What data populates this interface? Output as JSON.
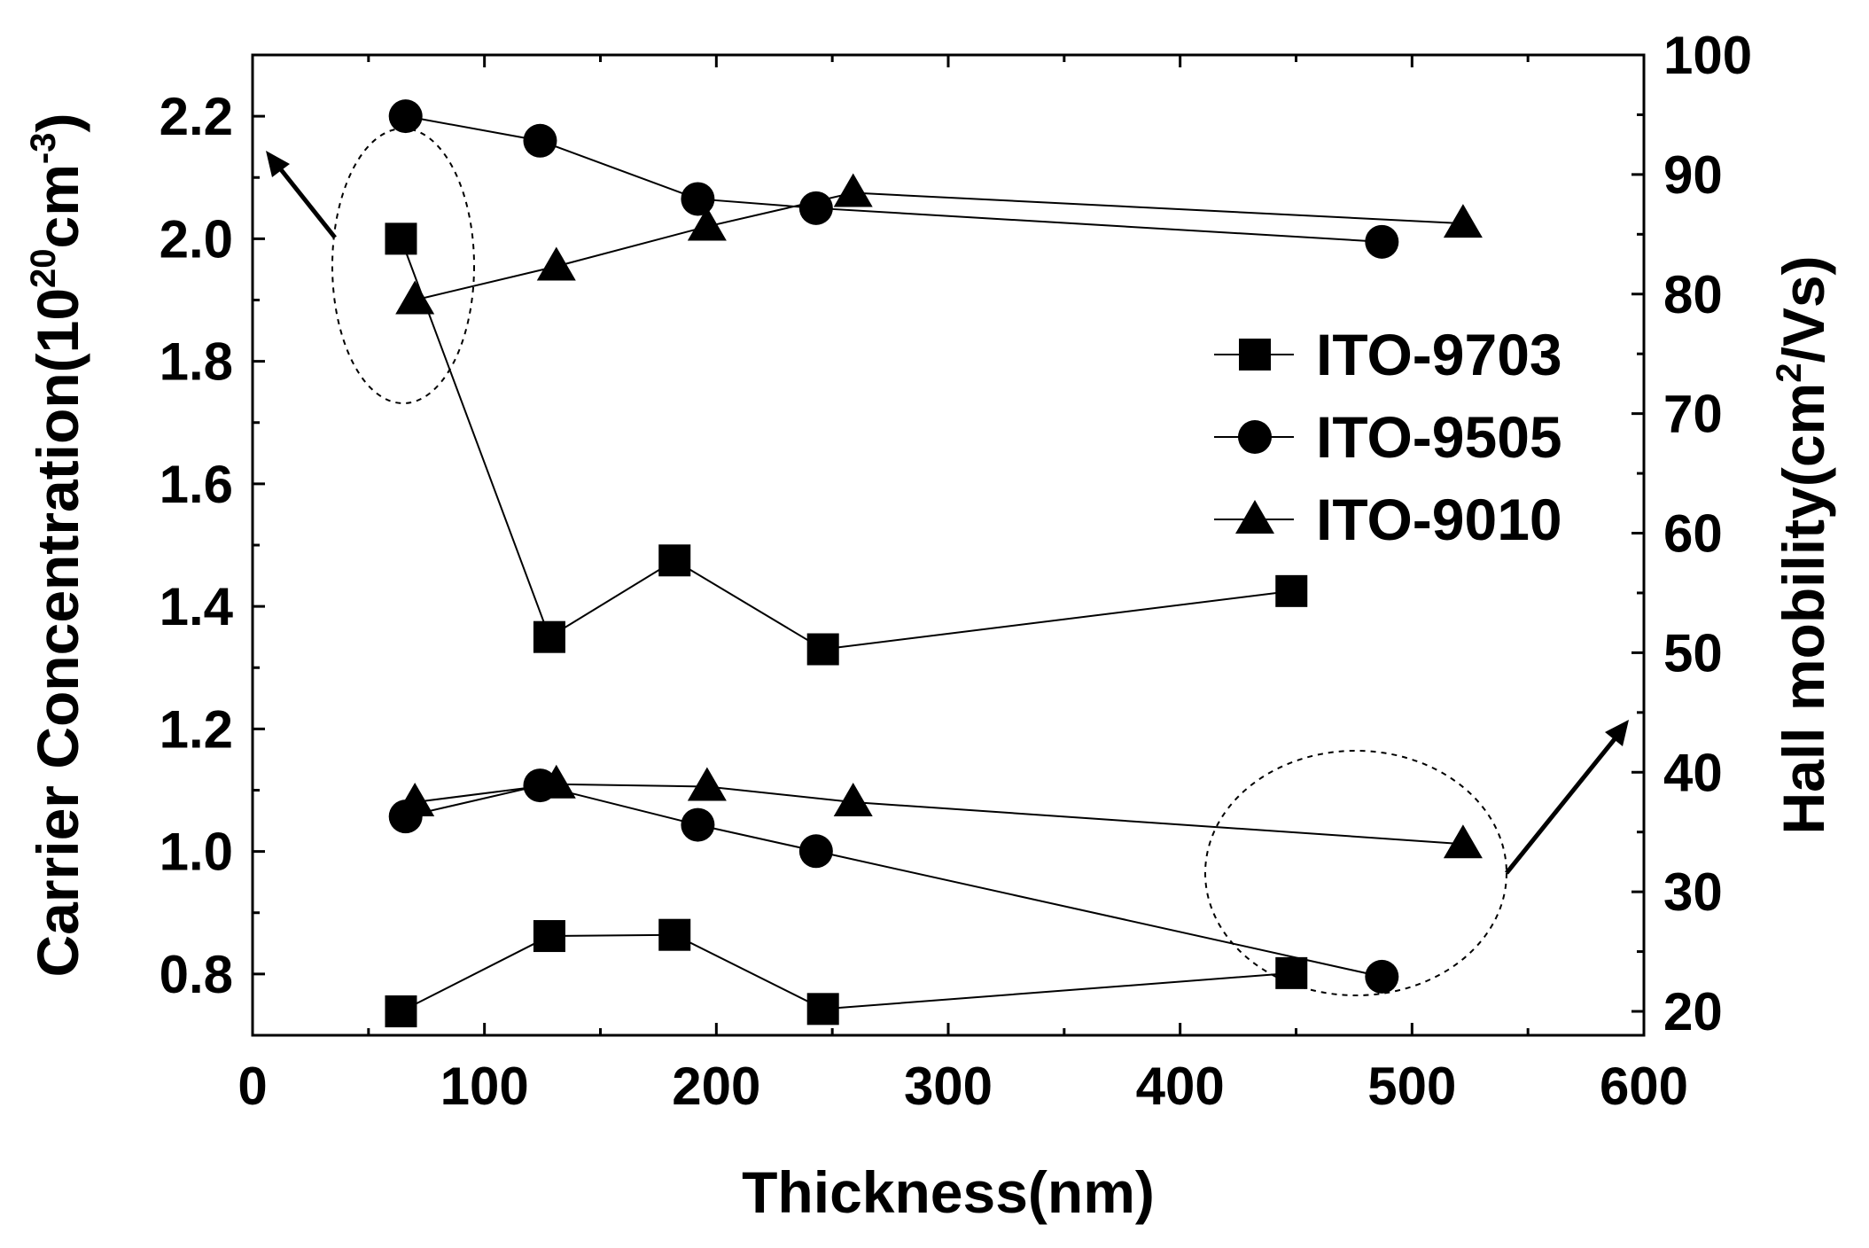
{
  "chart_data": {
    "type": "scatter",
    "x": {
      "label": "Thickness(nm)",
      "lim": [
        0,
        600
      ],
      "ticks": [
        0,
        100,
        200,
        300,
        400,
        500,
        600
      ]
    },
    "y_left": {
      "label_main": "Carrier Concentration(10",
      "label_sup1": "20",
      "label_mid": "cm",
      "label_sup2": "-3",
      "label_end": ")",
      "lim": [
        0.7,
        2.3
      ],
      "ticks": [
        "0.8",
        "1.0",
        "1.2",
        "1.4",
        "1.6",
        "1.8",
        "2.0",
        "2.2"
      ]
    },
    "y_right": {
      "label_main": "Hall mobility(cm",
      "label_sup": "2",
      "label_end": "/Vs)",
      "lim": [
        18,
        100
      ],
      "ticks": [
        "20",
        "30",
        "40",
        "50",
        "60",
        "70",
        "80",
        "90",
        "100"
      ]
    },
    "series": [
      {
        "name": "ITO-9703",
        "marker": "square",
        "axis": "left",
        "group": "concentration",
        "x": [
          64,
          128,
          182,
          246,
          448
        ],
        "y": [
          2.0,
          1.35,
          1.475,
          1.33,
          1.425
        ]
      },
      {
        "name": "ITO-9505",
        "marker": "circle",
        "axis": "left",
        "group": "concentration",
        "x": [
          66,
          124,
          192,
          243,
          487
        ],
        "y": [
          2.2,
          2.16,
          2.065,
          2.05,
          1.995
        ]
      },
      {
        "name": "ITO-9010",
        "marker": "triangle",
        "axis": "left",
        "group": "concentration",
        "x": [
          70,
          131,
          196,
          259,
          522
        ],
        "y": [
          1.9,
          1.955,
          2.02,
          2.075,
          2.025
        ]
      },
      {
        "name": "ITO-9703",
        "marker": "square",
        "axis": "right",
        "group": "mobility",
        "x": [
          64,
          128,
          182,
          246,
          448
        ],
        "y": [
          20.0,
          26.3,
          26.4,
          20.2,
          23.2
        ]
      },
      {
        "name": "ITO-9505",
        "marker": "circle",
        "axis": "right",
        "group": "mobility",
        "x": [
          66,
          124,
          192,
          243,
          487
        ],
        "y": [
          36.3,
          38.9,
          35.6,
          33.4,
          22.9
        ]
      },
      {
        "name": "ITO-9010",
        "marker": "triangle",
        "axis": "right",
        "group": "mobility",
        "x": [
          70,
          131,
          196,
          259,
          522
        ],
        "y": [
          37.5,
          39.0,
          38.8,
          37.5,
          34.0
        ]
      }
    ],
    "legend": {
      "placement": "center-right",
      "entries": [
        {
          "label": "ITO-9703",
          "marker": "square"
        },
        {
          "label": "ITO-9505",
          "marker": "circle"
        },
        {
          "label": "ITO-9010",
          "marker": "triangle"
        }
      ]
    },
    "annotations": [
      {
        "kind": "dashed-ellipse",
        "encloses": "concentration points near x=65",
        "arrow_to": "left-axis"
      },
      {
        "kind": "dashed-ellipse",
        "encloses": "mobility points near x=480",
        "arrow_to": "right-axis"
      }
    ]
  }
}
